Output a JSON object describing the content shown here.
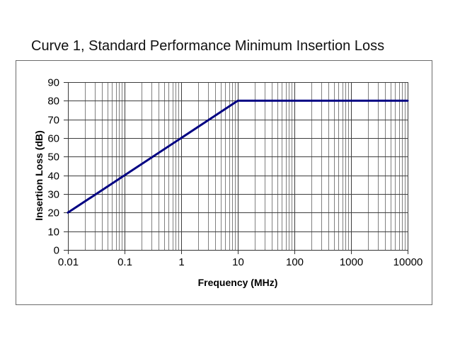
{
  "page": {
    "background": "#ffffff"
  },
  "chart_data": {
    "type": "line",
    "title": "Curve 1, Standard Performance Minimum Insertion Loss",
    "xlabel": "Frequency (MHz)",
    "ylabel": "Insertion Loss (dB)",
    "x_scale": "log",
    "xlim": [
      0.01,
      10000
    ],
    "ylim": [
      0,
      90
    ],
    "xticks": [
      0.01,
      0.1,
      1,
      10,
      100,
      1000,
      10000
    ],
    "xtick_labels": [
      "0.01",
      "0.1",
      "1",
      "10",
      "100",
      "1000",
      "10000"
    ],
    "yticks": [
      0,
      10,
      20,
      30,
      40,
      50,
      60,
      70,
      80,
      90
    ],
    "ytick_labels": [
      "0",
      "10",
      "20",
      "30",
      "40",
      "50",
      "60",
      "70",
      "80",
      "90"
    ],
    "grid": {
      "major_x": true,
      "major_y": true,
      "minor_x": true,
      "minor_y": false
    },
    "legend": "none",
    "series": [
      {
        "name": "Curve 1",
        "color": "#000082",
        "line_width": 3,
        "points": [
          [
            0.01,
            20
          ],
          [
            10,
            80
          ],
          [
            10000,
            80
          ]
        ]
      }
    ],
    "colors": {
      "frame_border": "#6b6b6b",
      "plot_background": "#ffffff",
      "grid_major": "#3c3c3c",
      "grid_minor": "#808080",
      "axis_line": "#333333",
      "tick": "#333333",
      "text": "#000000"
    }
  }
}
